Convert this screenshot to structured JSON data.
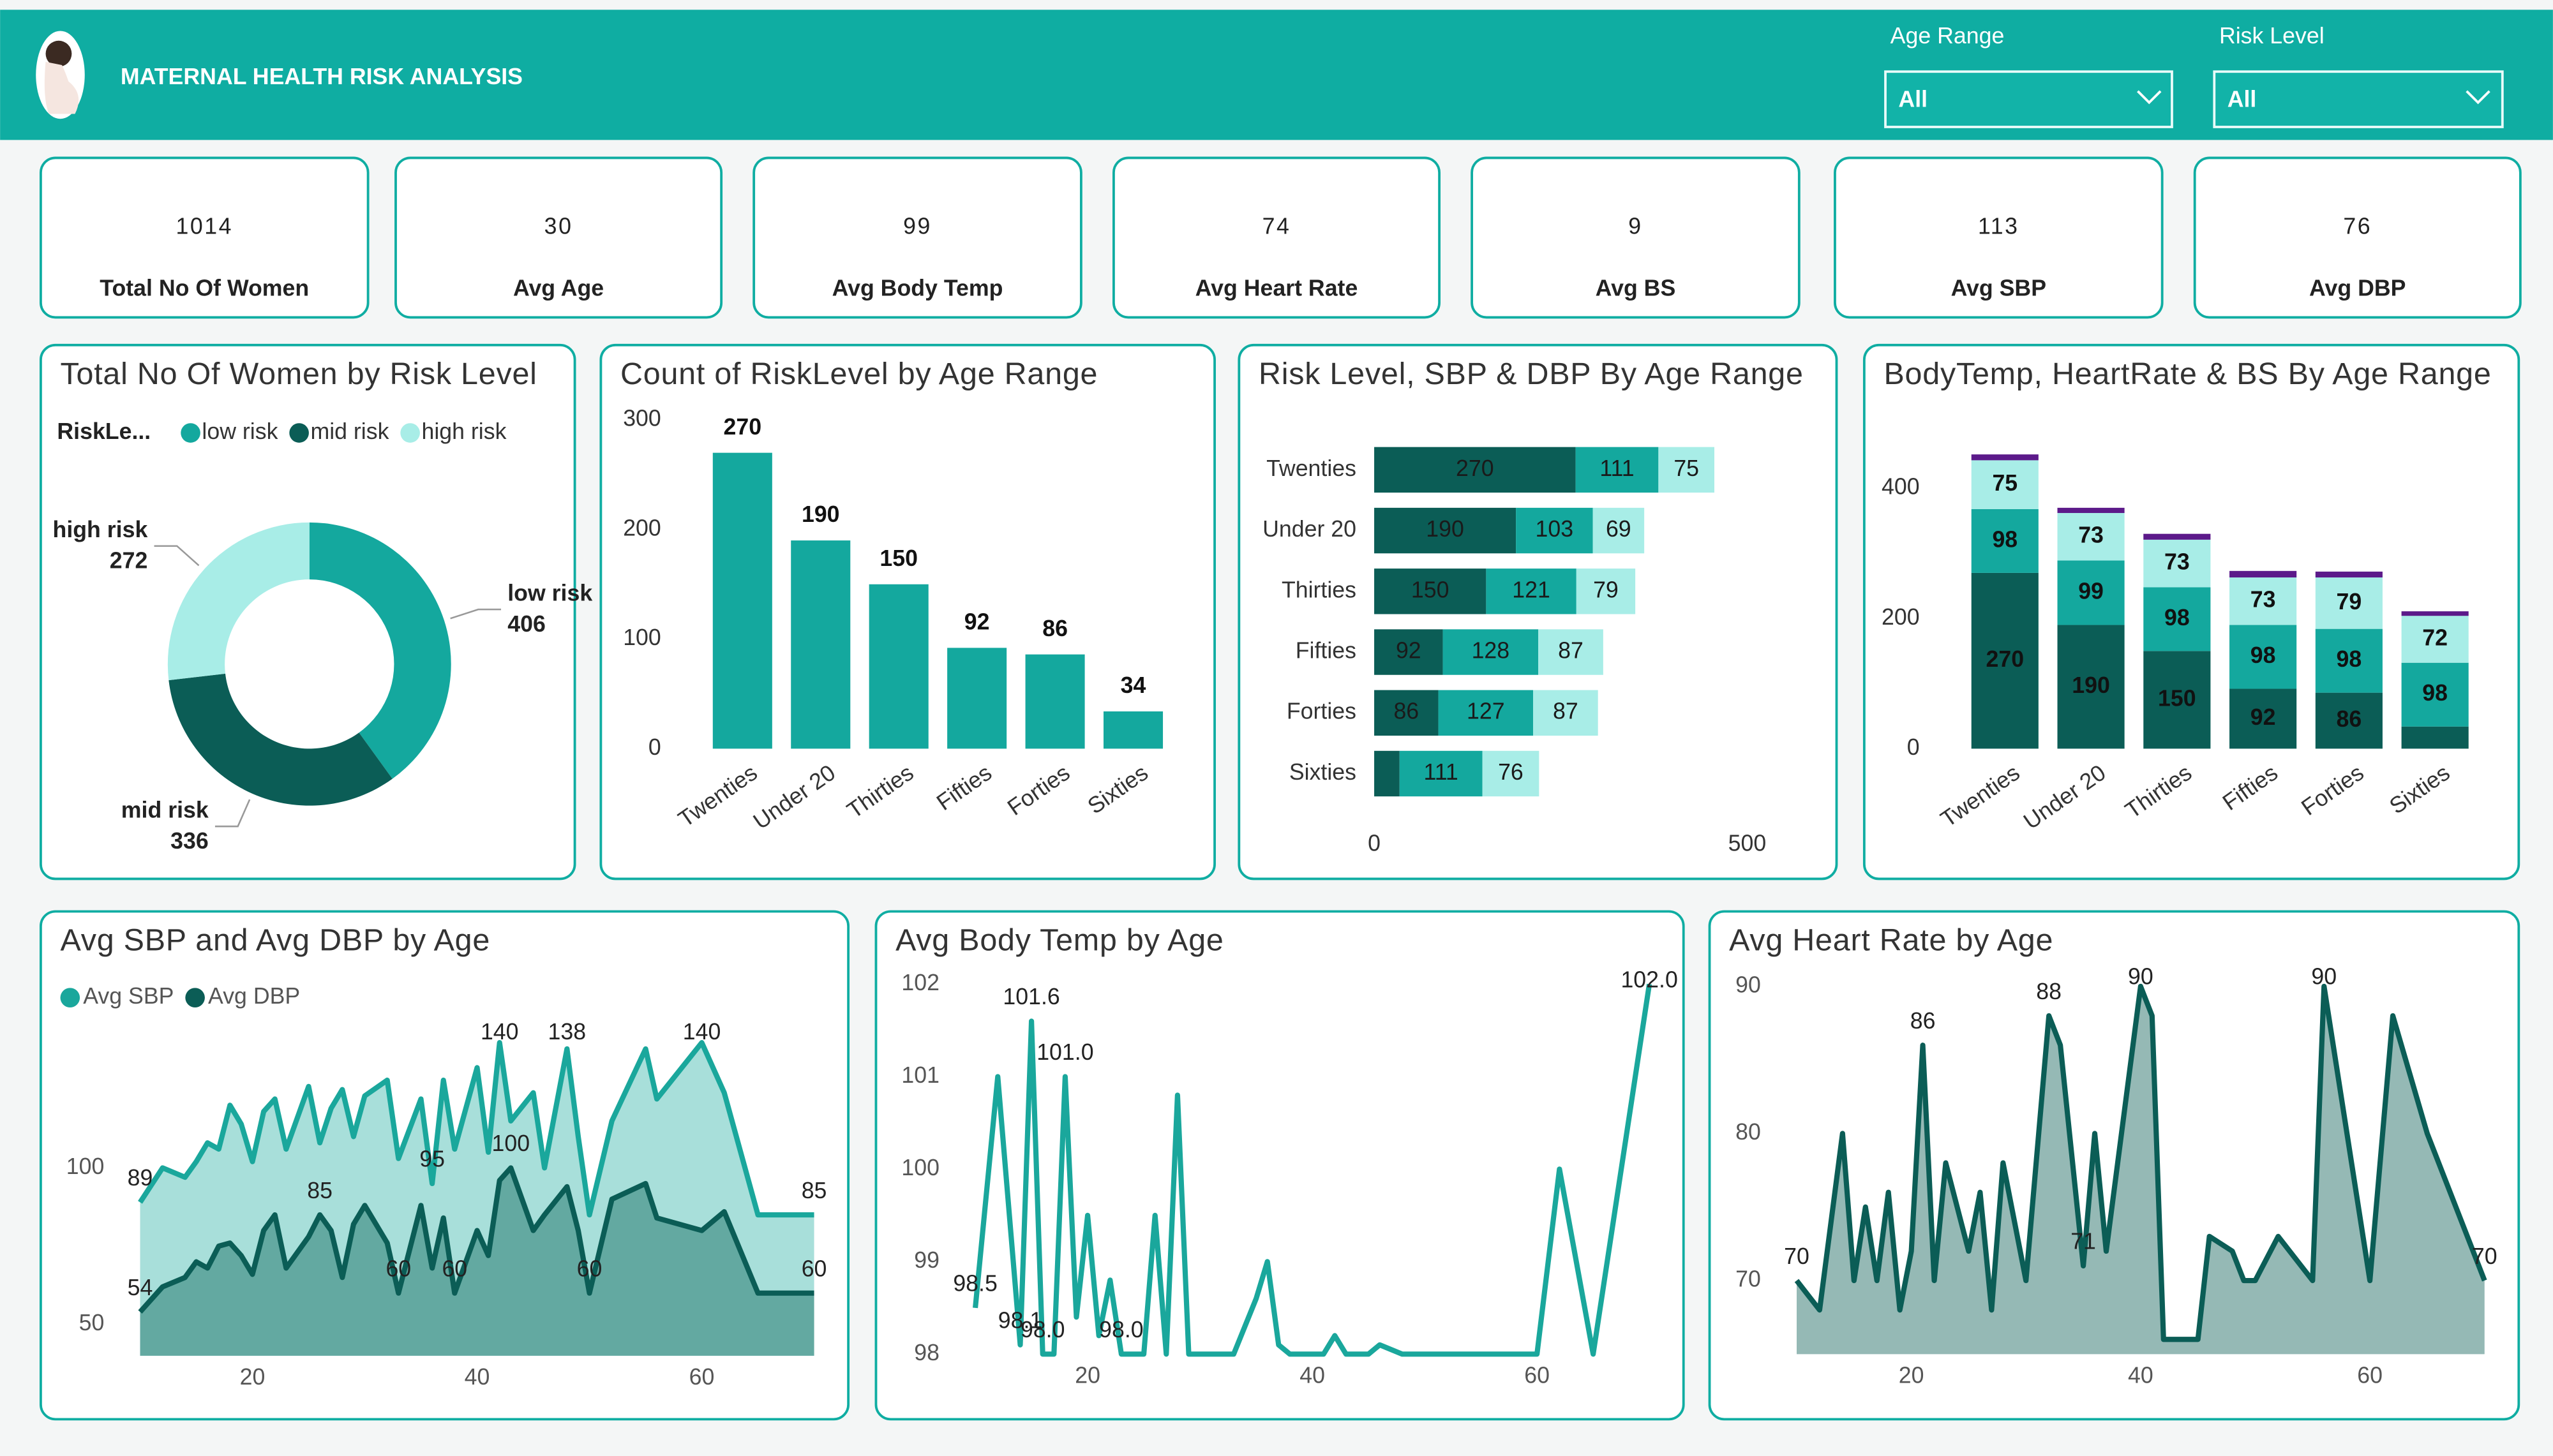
{
  "header": {
    "title": "MATERNAL HEALTH RISK ANALYSIS"
  },
  "filters": [
    {
      "label": "Age Range",
      "value": "All"
    },
    {
      "label": "Risk Level",
      "value": "All"
    }
  ],
  "kpis": [
    {
      "value": 1014,
      "label": "Total No Of Women"
    },
    {
      "value": 30,
      "label": "Avg Age"
    },
    {
      "value": 99,
      "label": "Avg Body Temp"
    },
    {
      "value": 74,
      "label": "Avg Heart Rate"
    },
    {
      "value": 9,
      "label": "Avg BS"
    },
    {
      "value": 113,
      "label": "Avg SBP"
    },
    {
      "value": 76,
      "label": "Avg DBP"
    }
  ],
  "chart_data": [
    {
      "type": "pie",
      "donut": true,
      "title": "Total No Of Women by Risk Level",
      "legend_title": "RiskLe...",
      "categories": [
        "low risk",
        "mid risk",
        "high risk"
      ],
      "values": [
        406,
        336,
        272
      ],
      "colors": [
        "#14a89e",
        "#0b5d56",
        "#a8ede7"
      ]
    },
    {
      "type": "bar",
      "title": "Count of RiskLevel by Age Range",
      "categories": [
        "Twenties",
        "Under 20",
        "Thirties",
        "Fifties",
        "Forties",
        "Sixties"
      ],
      "values": [
        270,
        190,
        150,
        92,
        86,
        34
      ],
      "color": "#14a89e",
      "ylim": [
        0,
        300
      ],
      "yticks": [
        0,
        100,
        200,
        300
      ]
    },
    {
      "type": "bar",
      "orientation": "horizontal",
      "stacked": true,
      "title": "Risk Level, SBP & DBP By Age Range",
      "categories": [
        "Twenties",
        "Under 20",
        "Thirties",
        "Fifties",
        "Forties",
        "Sixties"
      ],
      "series": [
        {
          "color": "#0b5d56",
          "values": [
            270,
            190,
            150,
            92,
            86,
            34
          ],
          "value_labels": [
            "270",
            "190",
            "150",
            "92",
            "86",
            null
          ]
        },
        {
          "color": "#14a89e",
          "values": [
            111,
            103,
            121,
            128,
            127,
            111
          ]
        },
        {
          "color": "#a8ede7",
          "values": [
            75,
            69,
            79,
            87,
            87,
            76
          ]
        }
      ],
      "xlim": [
        0,
        550
      ],
      "xticks": [
        0,
        500
      ]
    },
    {
      "type": "bar",
      "stacked": true,
      "title": "BodyTemp, HeartRate & BS By Age Range",
      "categories": [
        "Twenties",
        "Under 20",
        "Thirties",
        "Fifties",
        "Forties",
        "Sixties"
      ],
      "series": [
        {
          "color": "#0b5d56",
          "values": [
            270,
            190,
            150,
            92,
            86,
            34
          ],
          "value_labels": [
            "270",
            "190",
            "150",
            "92",
            "86",
            null
          ]
        },
        {
          "color": "#14a89e",
          "values": [
            98,
            99,
            98,
            98,
            98,
            98
          ]
        },
        {
          "color": "#a8ede7",
          "values": [
            75,
            73,
            73,
            73,
            79,
            72
          ]
        },
        {
          "color": "#5c1a8a",
          "values": [
            9,
            8,
            9,
            10,
            9,
            7
          ],
          "value_labels": [
            null,
            null,
            null,
            null,
            null,
            null
          ]
        }
      ],
      "ylim": [
        0,
        475
      ],
      "yticks": [
        0,
        200,
        400
      ]
    },
    {
      "type": "area",
      "title": "Avg SBP and Avg DBP by Age",
      "legend": true,
      "x": [
        10,
        12,
        14,
        15,
        16,
        17,
        18,
        19,
        20,
        21,
        22,
        23,
        25,
        26,
        27,
        28,
        29,
        30,
        32,
        33,
        35,
        36,
        37,
        38,
        40,
        41,
        42,
        43,
        45,
        46,
        48,
        49,
        50,
        52,
        55,
        56,
        60,
        62,
        65,
        70
      ],
      "series": [
        {
          "name": "Avg SBP",
          "color": "#1aa79c",
          "fill_color": "#a3ddd8",
          "values": [
            89,
            100,
            97,
            102,
            108,
            106,
            120,
            114,
            102,
            118,
            122,
            106,
            126,
            108,
            119,
            125,
            110,
            123,
            128,
            103,
            122,
            95,
            128,
            106,
            132,
            105,
            140,
            115,
            124,
            100,
            138,
            110,
            85,
            115,
            138,
            122,
            140,
            124,
            85,
            85
          ],
          "value_labels": [
            "89",
            null,
            null,
            null,
            null,
            null,
            null,
            null,
            null,
            null,
            null,
            null,
            null,
            null,
            null,
            null,
            null,
            null,
            null,
            null,
            null,
            "95",
            null,
            null,
            null,
            null,
            "140",
            null,
            null,
            null,
            "138",
            null,
            null,
            null,
            null,
            null,
            "140",
            null,
            null,
            "85"
          ]
        },
        {
          "name": "Avg DBP",
          "color": "#0b5d56",
          "fill_color": "#5fa59e",
          "values": [
            54,
            62,
            65,
            70,
            68,
            75,
            76,
            72,
            66,
            80,
            85,
            68,
            78,
            85,
            80,
            65,
            82,
            88,
            76,
            60,
            88,
            68,
            84,
            60,
            80,
            72,
            96,
            100,
            80,
            85,
            94,
            80,
            60,
            90,
            95,
            84,
            80,
            86,
            60,
            60
          ],
          "value_labels": [
            "54",
            null,
            null,
            null,
            null,
            null,
            null,
            null,
            null,
            null,
            null,
            null,
            null,
            "85",
            null,
            null,
            null,
            null,
            null,
            "60",
            null,
            null,
            null,
            "60",
            null,
            null,
            null,
            "100",
            null,
            null,
            null,
            null,
            "60",
            null,
            null,
            null,
            null,
            null,
            null,
            "60"
          ]
        }
      ],
      "xlim": [
        10,
        70
      ],
      "xticks": [
        20,
        40,
        60
      ],
      "ylim": [
        40,
        145
      ],
      "yticks": [
        50,
        100
      ]
    },
    {
      "type": "line",
      "title": "Avg Body Temp by Age",
      "x": [
        10,
        12,
        14,
        15,
        16,
        17,
        18,
        19,
        20,
        21,
        22,
        23,
        25,
        26,
        27,
        28,
        29,
        30,
        32,
        33,
        35,
        36,
        37,
        38,
        40,
        41,
        42,
        43,
        45,
        46,
        48,
        49,
        50,
        52,
        55,
        56,
        60,
        62,
        65,
        70
      ],
      "series": [
        {
          "color": "#1aa79c",
          "values": [
            98.5,
            101,
            98.1,
            101.6,
            98,
            98,
            101,
            98.4,
            99.5,
            98.2,
            98.8,
            98,
            98,
            99.5,
            98,
            100.8,
            98,
            98,
            98,
            98,
            98.6,
            99,
            98.1,
            98,
            98,
            98,
            98.2,
            98,
            98,
            98.1,
            98,
            98,
            98,
            98,
            98,
            98,
            98,
            100,
            98,
            102
          ],
          "value_labels": [
            "98.5",
            null,
            "98.1",
            "101.6",
            "98.0",
            null,
            "101.0",
            null,
            null,
            null,
            null,
            "98.0",
            null,
            null,
            null,
            null,
            null,
            null,
            null,
            null,
            null,
            null,
            null,
            null,
            null,
            null,
            null,
            null,
            null,
            null,
            null,
            null,
            null,
            null,
            null,
            null,
            null,
            null,
            null,
            "102.0"
          ]
        }
      ],
      "xlim": [
        10,
        70
      ],
      "xticks": [
        20,
        40,
        60
      ],
      "ylim": [
        98,
        102.1
      ],
      "yticks": [
        98,
        99,
        100,
        101,
        102
      ]
    },
    {
      "type": "area",
      "title": "Avg Heart Rate by Age",
      "x": [
        10,
        12,
        14,
        15,
        16,
        17,
        18,
        19,
        20,
        21,
        22,
        23,
        25,
        26,
        27,
        28,
        29,
        30,
        32,
        33,
        35,
        36,
        37,
        38,
        40,
        41,
        42,
        43,
        45,
        46,
        48,
        49,
        50,
        52,
        55,
        56,
        60,
        62,
        65,
        70
      ],
      "series": [
        {
          "color": "#0b5d56",
          "fill_color": "#8fb5b1",
          "values": [
            70,
            68,
            80,
            70,
            75,
            70,
            76,
            68,
            72,
            86,
            70,
            78,
            72,
            76,
            68,
            78,
            74,
            70,
            88,
            86,
            71,
            80,
            72,
            78,
            90,
            88,
            66,
            66,
            66,
            73,
            72,
            70,
            70,
            73,
            70,
            90,
            70,
            88,
            80,
            70
          ],
          "value_labels": [
            "70",
            null,
            null,
            null,
            null,
            null,
            null,
            null,
            null,
            "86",
            null,
            null,
            null,
            null,
            null,
            null,
            null,
            null,
            "88",
            null,
            "71",
            null,
            null,
            null,
            "90",
            null,
            null,
            null,
            null,
            null,
            null,
            null,
            null,
            null,
            null,
            "90",
            null,
            null,
            null,
            "70"
          ]
        }
      ],
      "xlim": [
        10,
        70
      ],
      "xticks": [
        20,
        40,
        60
      ],
      "ylim": [
        65,
        91
      ],
      "yticks": [
        70,
        80,
        90
      ]
    }
  ]
}
